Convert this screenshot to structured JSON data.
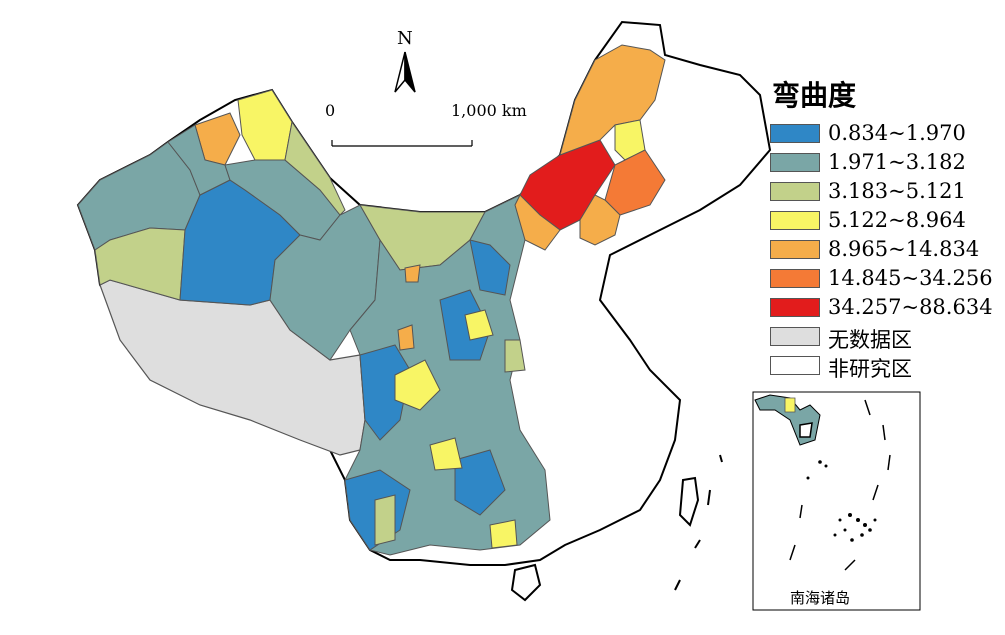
{
  "north": "N",
  "scale": {
    "start": "0",
    "end": "1,000 km"
  },
  "legend": {
    "title": "弯曲度",
    "items": [
      {
        "label": "0.834~1.970",
        "color": "#2f87c6"
      },
      {
        "label": "1.971~3.182",
        "color": "#7aa6a6"
      },
      {
        "label": "3.183~5.121",
        "color": "#c2d18a"
      },
      {
        "label": "5.122~8.964",
        "color": "#f8f565"
      },
      {
        "label": "8.965~14.834",
        "color": "#f5ad4a"
      },
      {
        "label": "14.845~34.256",
        "color": "#f47a36"
      },
      {
        "label": "34.257~88.634",
        "color": "#e21c1c"
      },
      {
        "label": "无数据区",
        "color": "#dedede"
      },
      {
        "label": "非研究区",
        "color": "#ffffff"
      }
    ]
  },
  "inset": {
    "label": "南海诸岛"
  }
}
